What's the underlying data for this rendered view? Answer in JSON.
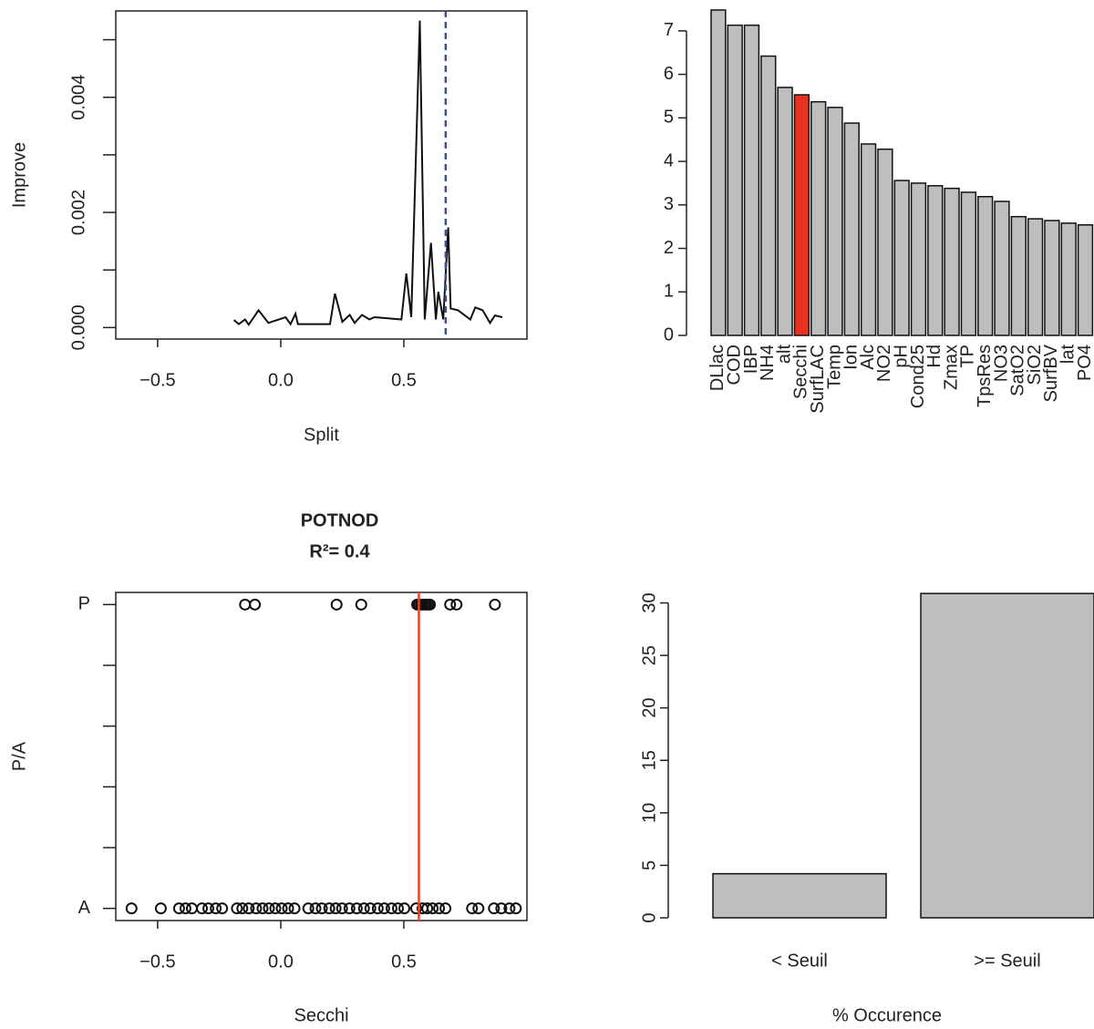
{
  "chart_data": [
    {
      "type": "line",
      "xlabel": "Split",
      "ylabel": "Improve",
      "color": "#111111",
      "x": [
        -0.19,
        -0.17,
        -0.145,
        -0.13,
        -0.09,
        -0.05,
        0.02,
        0.04,
        0.06,
        0.07,
        0.2,
        0.22,
        0.25,
        0.28,
        0.3,
        0.33,
        0.36,
        0.38,
        0.49,
        0.51,
        0.53,
        0.565,
        0.585,
        0.61,
        0.63,
        0.64,
        0.66,
        0.68,
        0.69,
        0.72,
        0.77,
        0.79,
        0.82,
        0.85,
        0.87,
        0.9
      ],
      "values": [
        0.00013,
        6e-05,
        0.00014,
        5e-05,
        0.0003,
        8e-05,
        0.00018,
        6e-05,
        0.00024,
        6e-05,
        6e-05,
        0.00059,
        0.0001,
        0.00022,
        8e-05,
        0.00022,
        0.00014,
        0.00018,
        0.00014,
        0.00094,
        0.00018,
        0.00533,
        0.00014,
        0.00147,
        0.00014,
        0.00062,
        0.00014,
        0.00174,
        0.00033,
        0.0003,
        0.00014,
        0.00035,
        0.0003,
        8e-05,
        0.00021,
        0.00018
      ],
      "xlim": [
        -0.67,
        1.0
      ],
      "ylim": [
        -0.0002,
        0.0055
      ],
      "xticks": [
        {
          "value": -0.5,
          "label": "−0.5"
        },
        {
          "value": 0,
          "label": "0.0"
        },
        0.5
      ],
      "yticks": [
        {
          "value": 0,
          "label": "0.000"
        },
        {
          "value": 0.002,
          "label": "0.002"
        },
        {
          "value": 0.004,
          "label": "0.004"
        }
      ],
      "yminor": [
        0.001,
        0.003,
        0.005
      ],
      "vline": 0.67,
      "vline_color": "#3a4ea6",
      "vline_style": "dashed"
    },
    {
      "type": "bar",
      "categories": [
        "DLlac",
        "COD",
        "IBP",
        "NH4",
        "alt",
        "Secchi",
        "SurfLAC",
        "Temp",
        "Ion",
        "Alc",
        "NO2",
        "pH",
        "Cond25",
        "Hd",
        "Zmax",
        "TP",
        "TpsRes",
        "NO3",
        "SatO2",
        "SiO2",
        "SurfBV",
        "lat",
        "PO4"
      ],
      "values": [
        7.48,
        7.13,
        7.13,
        6.42,
        5.7,
        5.53,
        5.37,
        5.24,
        4.88,
        4.4,
        4.28,
        3.56,
        3.5,
        3.44,
        3.38,
        3.29,
        3.19,
        3.08,
        2.73,
        2.68,
        2.64,
        2.58,
        2.54
      ],
      "colors": [
        "#bebebe",
        "#bebebe",
        "#bebebe",
        "#bebebe",
        "#bebebe",
        "#e8321e",
        "#bebebe",
        "#bebebe",
        "#bebebe",
        "#bebebe",
        "#bebebe",
        "#bebebe",
        "#bebebe",
        "#bebebe",
        "#bebebe",
        "#bebebe",
        "#bebebe",
        "#bebebe",
        "#bebebe",
        "#bebebe",
        "#bebebe",
        "#bebebe",
        "#bebebe"
      ],
      "ylim": [
        0,
        7.5
      ],
      "yticks": [
        0,
        1,
        2,
        3,
        4,
        5,
        6,
        7
      ]
    },
    {
      "type": "scatter",
      "title": "POTNOD",
      "subtitle": "R²= 0.4",
      "xlabel": "Secchi",
      "ylabel": "P/A",
      "color": "#111111",
      "x": [
        -0.145,
        -0.105,
        0.227,
        0.327,
        0.554,
        0.561,
        0.569,
        0.576,
        0.584,
        0.591,
        0.599,
        0.606,
        0.688,
        0.714,
        0.87,
        -0.606,
        -0.487,
        -0.413,
        -0.387,
        -0.361,
        -0.32,
        -0.294,
        -0.264,
        -0.238,
        -0.178,
        -0.156,
        -0.13,
        -0.1,
        -0.074,
        -0.048,
        -0.022,
        0.004,
        0.03,
        0.056,
        0.112,
        0.141,
        0.167,
        0.197,
        0.223,
        0.249,
        0.279,
        0.309,
        0.338,
        0.364,
        0.394,
        0.42,
        0.45,
        0.476,
        0.502,
        0.55,
        0.576,
        0.595,
        0.617,
        0.643,
        0.669,
        0.777,
        0.803,
        0.866,
        0.896,
        0.929,
        0.955
      ],
      "values": [
        1,
        1,
        1,
        1,
        1,
        1,
        1,
        1,
        1,
        1,
        1,
        1,
        1,
        1,
        1,
        0,
        0,
        0,
        0,
        0,
        0,
        0,
        0,
        0,
        0,
        0,
        0,
        0,
        0,
        0,
        0,
        0,
        0,
        0,
        0,
        0,
        0,
        0,
        0,
        0,
        0,
        0,
        0,
        0,
        0,
        0,
        0,
        0,
        0,
        0,
        0,
        0,
        0,
        0,
        0,
        0,
        0,
        0,
        0,
        0,
        0
      ],
      "xlim": [
        -0.67,
        1.0
      ],
      "ylim": [
        -0.04,
        1.04
      ],
      "xticks": [
        {
          "value": -0.5,
          "label": "−0.5"
        },
        {
          "value": 0,
          "label": "0.0"
        },
        0.5
      ],
      "yticks": [
        {
          "value": 0,
          "label": "A"
        },
        {
          "value": 1,
          "label": "P"
        }
      ],
      "yminor": [
        0.2,
        0.4,
        0.6,
        0.8
      ],
      "vline": 0.561,
      "vline_color": "#e8472a",
      "vline_style": "solid"
    },
    {
      "type": "bar",
      "xlabel": "% Occurence",
      "categories": [
        "< Seuil",
        ">= Seuil"
      ],
      "values": [
        4.2,
        30.9
      ],
      "color": "#bebebe",
      "ylim": [
        0,
        31
      ],
      "yticks": [
        0,
        5,
        10,
        15,
        20,
        25,
        30
      ]
    }
  ]
}
